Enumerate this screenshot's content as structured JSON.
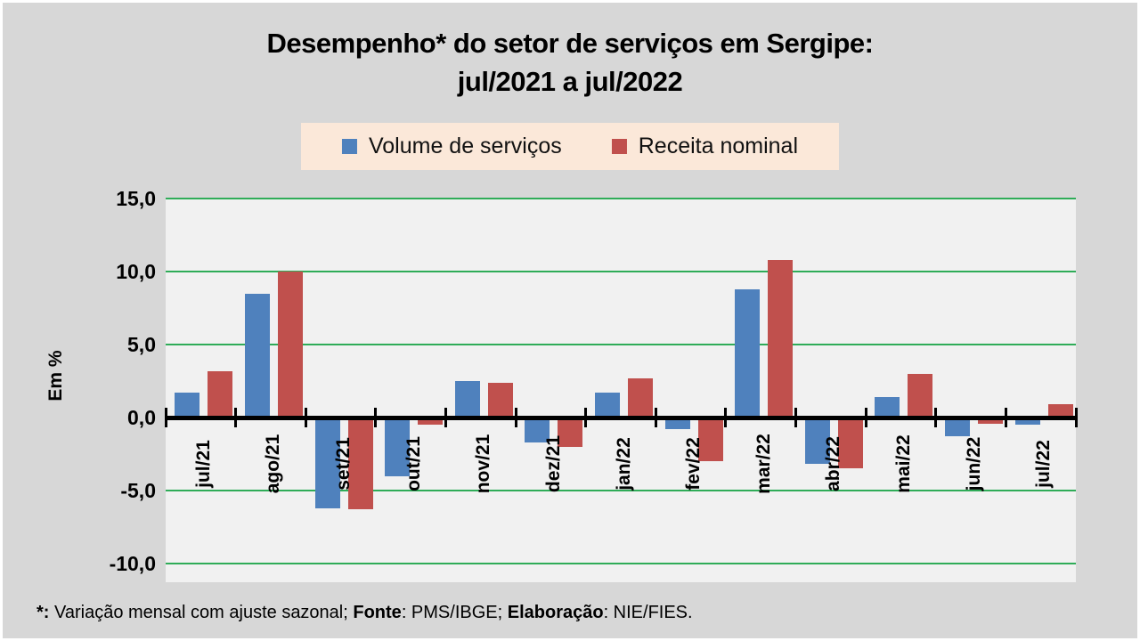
{
  "slide": {
    "title_line1": "Desempenho* do setor de serviços em Sergipe:",
    "title_line2": "jul/2021 a jul/2022",
    "footnote": {
      "asterisk": "*:",
      "part1": " Variação mensal com ajuste sazonal; ",
      "fonte_label": "Fonte",
      "part2": ": PMS/IBGE; ",
      "elaboracao_label": "Elaboração",
      "part3": ": NIE/FIES."
    }
  },
  "legend": {
    "items": [
      {
        "label": "Volume de serviços",
        "color": "#4f81bd"
      },
      {
        "label": "Receita nominal",
        "color": "#c0504d"
      }
    ]
  },
  "chart_data": {
    "type": "bar",
    "categories": [
      "jul/21",
      "ago/21",
      "set/21",
      "out/21",
      "nov/21",
      "dez/21",
      "jan/22",
      "fev/22",
      "mar/22",
      "abr/22",
      "mai/22",
      "jun/22",
      "jul/22"
    ],
    "series": [
      {
        "name": "Volume de serviços",
        "color": "#4f81bd",
        "values": [
          1.7,
          8.5,
          -6.2,
          -4.0,
          2.5,
          -1.7,
          1.7,
          -0.8,
          8.8,
          -3.2,
          1.4,
          -1.3,
          -0.5
        ]
      },
      {
        "name": "Receita nominal",
        "color": "#c0504d",
        "values": [
          3.2,
          10.0,
          -6.3,
          -0.5,
          2.4,
          -2.0,
          2.7,
          -3.0,
          10.8,
          -3.5,
          3.0,
          -0.4,
          0.9
        ]
      }
    ],
    "title": "Desempenho* do setor de serviços em Sergipe: jul/2021 a jul/2022",
    "xlabel": "",
    "ylabel": "Em %",
    "ylim": [
      -10,
      15
    ],
    "yticks": [
      {
        "value": 15,
        "label": "15,0"
      },
      {
        "value": 10,
        "label": "10,0"
      },
      {
        "value": 5,
        "label": "5,0"
      },
      {
        "value": 0,
        "label": "0,0"
      },
      {
        "value": -5,
        "label": "-5,0"
      },
      {
        "value": -10,
        "label": "-10,0"
      }
    ],
    "grid": "horizontal",
    "legend_position": "top",
    "gridline_color": "#2fac58",
    "axis_color": "#000000",
    "plot_bg": "#f1f1f1"
  }
}
